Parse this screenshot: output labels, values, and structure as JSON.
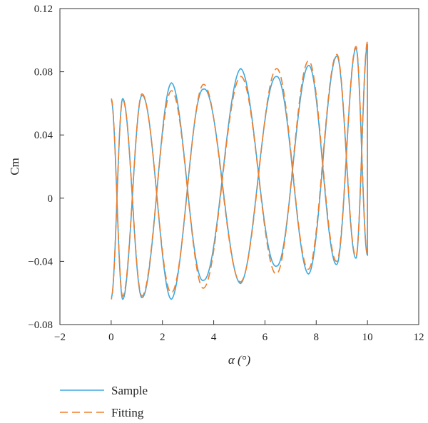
{
  "chart_data": {
    "type": "line",
    "title": "",
    "xlabel": "α (°)",
    "ylabel": "Cm",
    "xlim": [
      -2,
      12
    ],
    "ylim": [
      -0.08,
      0.12
    ],
    "xticks": [
      -2,
      0,
      2,
      4,
      6,
      8,
      10,
      12
    ],
    "xtick_labels": [
      "−2",
      "0",
      "2",
      "4",
      "6",
      "8",
      "10",
      "12"
    ],
    "yticks": [
      -0.08,
      -0.04,
      0,
      0.04,
      0.08,
      0.12
    ],
    "ytick_labels": [
      "−0.08",
      "−0.04",
      "0",
      "0.04",
      "0.08",
      "0.12"
    ],
    "grid": false,
    "legend_position": "below-left",
    "description_of_data": "Oscillating moment-coefficient loops; each row is a half-cycle sweep in alpha with the turning-point Cm values",
    "series": [
      {
        "name": "Sample",
        "color": "#3fa9e0",
        "dash": "solid",
        "alpha_turns": [
          0.0,
          0.45,
          1.2,
          2.35,
          3.6,
          5.05,
          6.45,
          7.7,
          8.8,
          9.55,
          10.0
        ],
        "upper_peaks": [
          0.062,
          0.063,
          0.065,
          0.073,
          0.069,
          0.082,
          0.077,
          0.084,
          0.09,
          0.095,
          0.097
        ],
        "lower_peaks": [
          -0.063,
          -0.064,
          -0.063,
          -0.064,
          -0.052,
          -0.054,
          -0.043,
          -0.048,
          -0.042,
          -0.038,
          -0.036
        ]
      },
      {
        "name": "Fitting",
        "color": "#f07f2a",
        "dash": "dashed",
        "alpha_turns": [
          0.0,
          0.45,
          1.2,
          2.35,
          3.6,
          5.05,
          6.45,
          7.7,
          8.8,
          9.55,
          10.0
        ],
        "upper_peaks": [
          0.063,
          0.062,
          0.066,
          0.068,
          0.072,
          0.077,
          0.082,
          0.087,
          0.091,
          0.096,
          0.099
        ],
        "lower_peaks": [
          -0.064,
          -0.062,
          -0.062,
          -0.06,
          -0.057,
          -0.053,
          -0.048,
          -0.045,
          -0.04,
          -0.037,
          -0.035
        ]
      }
    ]
  }
}
